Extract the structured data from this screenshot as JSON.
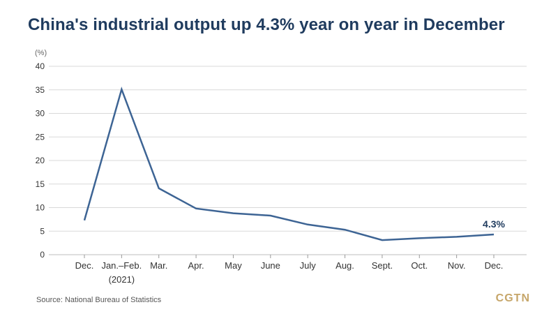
{
  "chart_data": {
    "type": "line",
    "title": "China's industrial output up 4.3% year on year in December",
    "ylabel": "(%)",
    "xlabel": "",
    "ylim": [
      0,
      40
    ],
    "yticks": [
      0,
      5,
      10,
      15,
      20,
      25,
      30,
      35,
      40
    ],
    "categories": [
      [
        "Dec."
      ],
      [
        "Jan.–Feb.",
        "(2021)"
      ],
      [
        "Mar."
      ],
      [
        "Apr."
      ],
      [
        "May"
      ],
      [
        "June"
      ],
      [
        "July"
      ],
      [
        "Aug."
      ],
      [
        "Sept."
      ],
      [
        "Oct."
      ],
      [
        "Nov."
      ],
      [
        "Dec."
      ]
    ],
    "series": [
      {
        "values": [
          7.3,
          35.1,
          14.1,
          9.8,
          8.8,
          8.3,
          6.4,
          5.3,
          3.1,
          3.5,
          3.8,
          4.3
        ],
        "color": "#3d6494"
      }
    ],
    "annotations": [
      {
        "index": 11,
        "text": "4.3%"
      }
    ],
    "grid": true,
    "gridColor": "#d9d9d9"
  },
  "source": "Source: National Bureau of Statistics",
  "logo": "CGTN"
}
